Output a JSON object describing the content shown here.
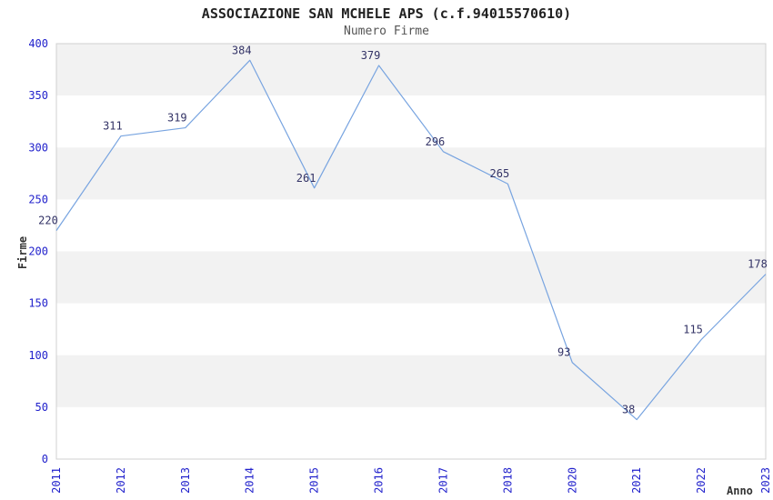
{
  "chart_data": {
    "type": "line",
    "title": "ASSOCIAZIONE SAN MCHELE APS (c.f.94015570610)",
    "subtitle": "Numero Firme",
    "xlabel": "Anno",
    "ylabel": "Firme",
    "categories": [
      "2011",
      "2012",
      "2013",
      "2014",
      "2015",
      "2016",
      "2017",
      "2018",
      "2020",
      "2021",
      "2022",
      "2023"
    ],
    "values": [
      220,
      311,
      319,
      384,
      261,
      379,
      296,
      265,
      93,
      38,
      115,
      178
    ],
    "ylim": [
      0,
      400
    ],
    "ytick_step": 50,
    "yticks": [
      0,
      50,
      100,
      150,
      200,
      250,
      300,
      350,
      400
    ],
    "grid": "alternating-horizontal-bands",
    "legend": "none",
    "markers": "none",
    "colors": {
      "line": "#78a4e0",
      "tick_label": "#2222cc",
      "data_label": "#333366",
      "band": "#f2f2f2",
      "plot_border": "#d0d0d0",
      "title": "#222222",
      "subtitle": "#555555",
      "axis_title": "#333333",
      "background": "#ffffff"
    }
  }
}
